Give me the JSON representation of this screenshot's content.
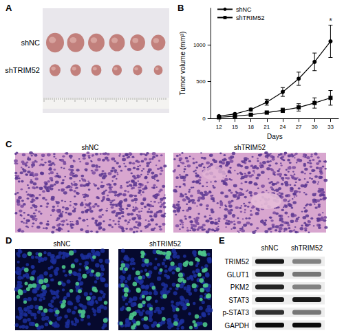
{
  "chart_data": {
    "type": "line",
    "panel": "B",
    "categories": [
      "12",
      "15",
      "18",
      "21",
      "24",
      "27",
      "30",
      "33"
    ],
    "x_label": "Days",
    "y_label": "Tumor volume (mm³)",
    "ylim": [
      0,
      1500
    ],
    "yticks": [
      0,
      500,
      1000
    ],
    "grid": false,
    "legend": "top-left",
    "series": [
      {
        "name": "shNC",
        "color": "#000000",
        "marker": "circle",
        "values": [
          30,
          60,
          120,
          220,
          360,
          540,
          770,
          1050
        ],
        "errors": [
          5,
          10,
          20,
          40,
          60,
          90,
          120,
          220
        ]
      },
      {
        "name": "shTRIM52",
        "color": "#000000",
        "marker": "square",
        "values": [
          15,
          30,
          50,
          80,
          110,
          150,
          210,
          280
        ],
        "errors": [
          5,
          8,
          12,
          20,
          30,
          50,
          70,
          100
        ]
      }
    ],
    "annotations": [
      {
        "text": "*",
        "category": "33",
        "y": 1330
      }
    ]
  },
  "panels": {
    "A": {
      "letter": "A",
      "groups": [
        {
          "label": "shNC",
          "count": 6
        },
        {
          "label": "shTRIM52",
          "count": 6
        }
      ]
    },
    "C": {
      "letter": "C",
      "labels": [
        "shNC",
        "shTRIM52"
      ]
    },
    "D": {
      "letter": "D",
      "labels": [
        "shNC",
        "shTRIM52"
      ]
    },
    "E": {
      "letter": "E",
      "lanes": [
        "shNC",
        "shTRIM52"
      ],
      "rows": [
        {
          "label": "TRIM52",
          "intensity": [
            0.9,
            0.45
          ]
        },
        {
          "label": "GLUT1",
          "intensity": [
            0.85,
            0.5
          ]
        },
        {
          "label": "PKM2",
          "intensity": [
            0.85,
            0.45
          ]
        },
        {
          "label": "STAT3",
          "intensity": [
            0.9,
            0.9
          ]
        },
        {
          "label": "p-STAT3",
          "intensity": [
            0.8,
            0.5
          ]
        },
        {
          "label": "GAPDH",
          "intensity": [
            0.95,
            0.95
          ]
        }
      ]
    }
  }
}
